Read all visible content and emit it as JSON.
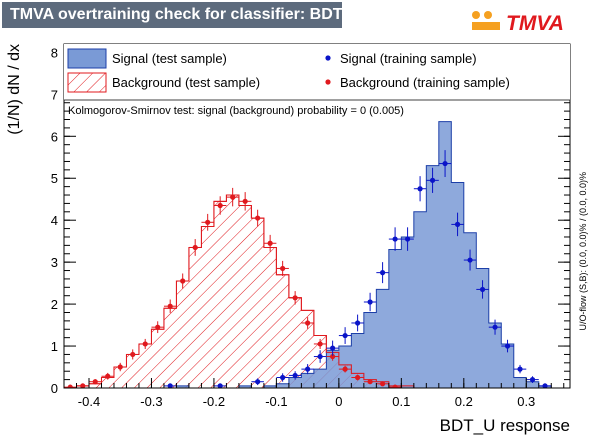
{
  "title": "TMVA overtraining check for classifier: BDT_U",
  "logo_text": "TMVA",
  "colors": {
    "title_bg": "#5d6b7d",
    "signal_fill": "#7a9ad6",
    "signal_line": "#1c3fa8",
    "signal_point": "#0a14c8",
    "background_line": "#e0191e",
    "background_point": "#e0191e",
    "logo_orange": "#f5a020",
    "logo_red": "#e0191e"
  },
  "chart_data": {
    "type": "histogram",
    "xlabel": "BDT_U response",
    "ylabel": "(1/N) dN / dx",
    "xlim": [
      -0.44,
      0.37
    ],
    "ylim": [
      0,
      8.2
    ],
    "xticks": [
      "-0.4",
      "-0.3",
      "-0.2",
      "-0.1",
      "0",
      "0.1",
      "0.2",
      "0.3"
    ],
    "xtick_values": [
      -0.4,
      -0.3,
      -0.2,
      -0.1,
      0,
      0.1,
      0.2,
      0.3
    ],
    "yticks": [
      "0",
      "1",
      "2",
      "3",
      "4",
      "5",
      "6",
      "7",
      "8"
    ],
    "ytick_values": [
      0,
      1,
      2,
      3,
      4,
      5,
      6,
      7,
      8
    ],
    "bin_edges": [
      -0.44,
      -0.42,
      -0.4,
      -0.38,
      -0.36,
      -0.34,
      -0.32,
      -0.3,
      -0.28,
      -0.26,
      -0.24,
      -0.22,
      -0.2,
      -0.18,
      -0.16,
      -0.14,
      -0.12,
      -0.1,
      -0.08,
      -0.06,
      -0.04,
      -0.02,
      0.0,
      0.02,
      0.04,
      0.06,
      0.08,
      0.1,
      0.12,
      0.14,
      0.16,
      0.18,
      0.2,
      0.22,
      0.24,
      0.26,
      0.28,
      0.3,
      0.32,
      0.34,
      0.36
    ],
    "series": [
      {
        "name": "Signal (test sample)",
        "style": "filled-histogram",
        "values": [
          0,
          0,
          0,
          0,
          0,
          0,
          0,
          0,
          0,
          0.05,
          0,
          0,
          0,
          0,
          0.05,
          0,
          0.05,
          0.1,
          0.25,
          0.35,
          0.45,
          0.9,
          1.0,
          1.3,
          1.8,
          2.35,
          3.3,
          3.6,
          4.2,
          5.3,
          6.35,
          4.9,
          3.7,
          2.85,
          1.55,
          1.05,
          0.25,
          0.15,
          0.05,
          0
        ]
      },
      {
        "name": "Background (test sample)",
        "style": "hatched-histogram",
        "values": [
          0,
          0.05,
          0.1,
          0.25,
          0.5,
          0.8,
          1.05,
          1.4,
          1.9,
          2.55,
          3.35,
          3.85,
          4.45,
          4.6,
          4.35,
          4.05,
          3.35,
          2.7,
          2.15,
          1.85,
          1.25,
          0.85,
          0.55,
          0.35,
          0.2,
          0.15,
          0.05,
          0.05,
          0,
          0,
          0,
          0,
          0,
          0,
          0,
          0,
          0,
          0,
          0,
          0
        ]
      },
      {
        "name": "Signal (training sample)",
        "style": "points",
        "x": [
          -0.27,
          -0.19,
          -0.13,
          -0.09,
          -0.07,
          -0.05,
          -0.03,
          -0.01,
          0.01,
          0.03,
          0.05,
          0.07,
          0.09,
          0.11,
          0.13,
          0.15,
          0.17,
          0.19,
          0.21,
          0.23,
          0.25,
          0.27,
          0.29,
          0.31,
          0.33
        ],
        "y": [
          0.05,
          0.05,
          0.15,
          0.25,
          0.3,
          0.45,
          0.75,
          0.95,
          1.25,
          1.55,
          2.05,
          2.75,
          3.55,
          3.55,
          4.75,
          4.95,
          5.35,
          3.9,
          3.05,
          2.35,
          1.45,
          1.0,
          0.45,
          0.2,
          0.05
        ],
        "err": [
          0.05,
          0.05,
          0.08,
          0.1,
          0.1,
          0.12,
          0.15,
          0.18,
          0.2,
          0.2,
          0.22,
          0.25,
          0.28,
          0.28,
          0.3,
          0.3,
          0.32,
          0.28,
          0.25,
          0.22,
          0.18,
          0.15,
          0.1,
          0.08,
          0.05
        ]
      },
      {
        "name": "Background (training sample)",
        "style": "points",
        "x": [
          -0.43,
          -0.41,
          -0.39,
          -0.37,
          -0.35,
          -0.33,
          -0.31,
          -0.29,
          -0.27,
          -0.25,
          -0.23,
          -0.21,
          -0.19,
          -0.17,
          -0.15,
          -0.13,
          -0.11,
          -0.09,
          -0.07,
          -0.05,
          -0.03,
          -0.01,
          0.01,
          0.03,
          0.05,
          0.07,
          0.09
        ],
        "y": [
          0.02,
          0.05,
          0.15,
          0.28,
          0.5,
          0.8,
          1.05,
          1.45,
          1.95,
          2.55,
          3.35,
          3.95,
          4.35,
          4.55,
          4.45,
          4.05,
          3.45,
          2.85,
          2.15,
          1.55,
          1.05,
          0.75,
          0.45,
          0.25,
          0.15,
          0.1,
          0.02
        ],
        "err": [
          0.03,
          0.05,
          0.06,
          0.08,
          0.1,
          0.12,
          0.12,
          0.14,
          0.16,
          0.18,
          0.2,
          0.2,
          0.22,
          0.22,
          0.22,
          0.2,
          0.2,
          0.18,
          0.16,
          0.14,
          0.12,
          0.1,
          0.08,
          0.07,
          0.05,
          0.05,
          0.03
        ]
      }
    ],
    "annotation": "Kolmogorov-Smirnov test: signal (background) probability =     0 (0.005)",
    "overflow_note": "U/O-flow (S,B): (0.0, 0.0)% / (0.0, 0.0)%",
    "legend_placement": "top"
  }
}
